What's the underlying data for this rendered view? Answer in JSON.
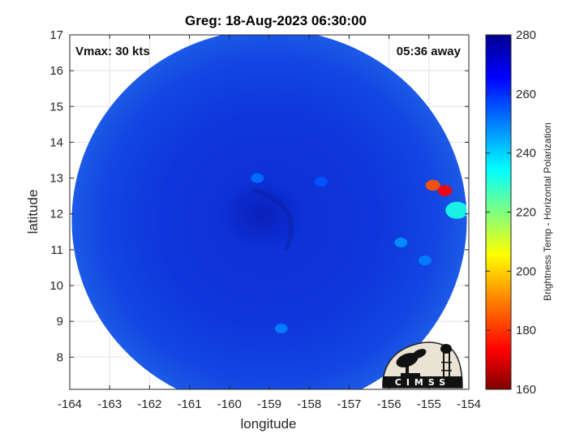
{
  "chart_data": {
    "type": "heatmap",
    "title": "Greg: 18-Aug-2023 06:30:00",
    "xlabel": "longitude",
    "ylabel": "latitude",
    "xlim": [
      -164,
      -154
    ],
    "ylim": [
      7.1,
      17
    ],
    "x_ticks": [
      "-164",
      "-163",
      "-162",
      "-161",
      "-160",
      "-159",
      "-158",
      "-157",
      "-156",
      "-155",
      "-154"
    ],
    "y_ticks": [
      "8",
      "9",
      "10",
      "11",
      "12",
      "13",
      "14",
      "15",
      "16",
      "17"
    ],
    "grid": true,
    "annotations": {
      "vmax": "Vmax: 30 kts",
      "time_away": "05:36 away"
    },
    "storm_center": {
      "lon": -159.2,
      "lat": 12.0
    },
    "swath_center": {
      "lon": -159.0,
      "lat": 12.0
    },
    "features": [
      {
        "lon": -154.9,
        "lat": 12.8,
        "value": 185
      },
      {
        "lon": -154.6,
        "lat": 12.65,
        "value": 175
      },
      {
        "lon": -154.3,
        "lat": 12.1,
        "value": 232
      },
      {
        "lon": -155.7,
        "lat": 11.2,
        "value": 248
      },
      {
        "lon": -155.1,
        "lat": 10.7,
        "value": 250
      },
      {
        "lon": -158.7,
        "lat": 8.8,
        "value": 250
      },
      {
        "lon": -157.7,
        "lat": 12.9,
        "value": 255
      },
      {
        "lon": -159.3,
        "lat": 13.0,
        "value": 252
      }
    ],
    "colorbar": {
      "label": "Brightness Temp - Horizontal Polarization",
      "min": 160,
      "max": 280,
      "ticks": [
        "280",
        "260",
        "240",
        "220",
        "200",
        "180",
        "160"
      ]
    },
    "colormap": [
      "#800000",
      "#ff0000",
      "#ff8000",
      "#ffff00",
      "#80ff80",
      "#00ffff",
      "#0080ff",
      "#0000ff",
      "#00008f"
    ],
    "logo": {
      "text": "CIMSS"
    }
  }
}
